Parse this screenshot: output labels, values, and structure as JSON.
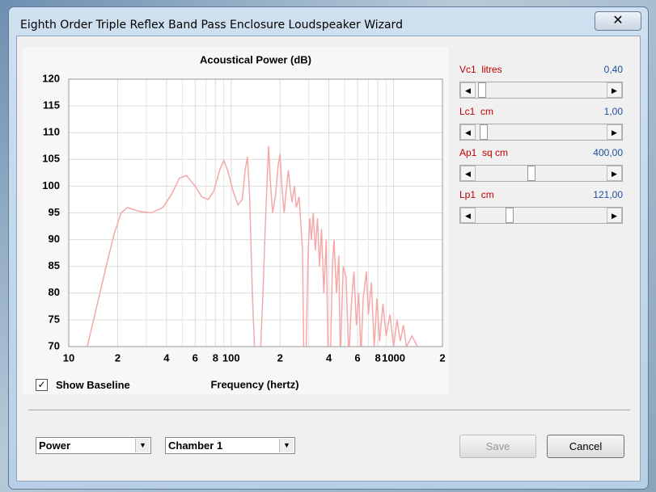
{
  "window": {
    "title": "Eighth Order Triple Reflex Band Pass Enclosure Loudspeaker Wizard"
  },
  "chart_data": {
    "type": "line",
    "title": "Acoustical Power (dB)",
    "x_label": "Frequency (hertz)",
    "color": "#f4a9a8",
    "grid": true,
    "xscale": "log",
    "xlim": [
      10,
      2000
    ],
    "ylim": [
      70,
      120
    ],
    "xticks": [
      10,
      {
        "value": 20,
        "label": "2"
      },
      {
        "value": 40,
        "label": "4"
      },
      {
        "value": 60,
        "label": "6"
      },
      {
        "value": 80,
        "label": "8"
      },
      100,
      {
        "value": 200,
        "label": "2"
      },
      {
        "value": 400,
        "label": "4"
      },
      {
        "value": 600,
        "label": "6"
      },
      {
        "value": 800,
        "label": "8"
      },
      1000,
      {
        "value": 2000,
        "label": "2"
      }
    ],
    "x_minor_grid": [
      30,
      50,
      70,
      90,
      300,
      500,
      700,
      900
    ],
    "yticks": [
      70,
      75,
      80,
      85,
      90,
      95,
      100,
      105,
      110,
      115,
      120
    ],
    "x": [
      13,
      15,
      17,
      19,
      21,
      23,
      27,
      32,
      38,
      43,
      48,
      53,
      60,
      66,
      72,
      78,
      85,
      90,
      95,
      103,
      110,
      117,
      122,
      126,
      130,
      135,
      140,
      152,
      157,
      162,
      166,
      170,
      175,
      180,
      187,
      195,
      200,
      205,
      212,
      218,
      225,
      230,
      237,
      245,
      252,
      262,
      275,
      280,
      290,
      298,
      305,
      312,
      320,
      330,
      340,
      350,
      360,
      372,
      385,
      395,
      410,
      420,
      430,
      445,
      460,
      470,
      490,
      510,
      530,
      550,
      570,
      590,
      610,
      630,
      650,
      680,
      700,
      730,
      760,
      790,
      820,
      860,
      900,
      950,
      1000,
      1050,
      1100,
      1150,
      1200,
      1300,
      1400
    ],
    "values": [
      70,
      78,
      85,
      91,
      95,
      96,
      95.3,
      95,
      96,
      98.5,
      101.5,
      102,
      100,
      98,
      97.5,
      99,
      103,
      104.8,
      103,
      99,
      96.5,
      97.5,
      103,
      105.5,
      98,
      80,
      68,
      70,
      80,
      92,
      100,
      107.5,
      100,
      95,
      98,
      104,
      106,
      100,
      95,
      99,
      103,
      100,
      97,
      100,
      96,
      98,
      88,
      68,
      70,
      88,
      94,
      90,
      95,
      88,
      94,
      85,
      92,
      80,
      90,
      68,
      70,
      85,
      90,
      80,
      87,
      68,
      85,
      83,
      68,
      78,
      84,
      74,
      80,
      68,
      79,
      84,
      76,
      82,
      70,
      79,
      71,
      78,
      72,
      76,
      70,
      75,
      71,
      74,
      70,
      72,
      70
    ]
  },
  "parameters": [
    {
      "label": "Vc1  litres",
      "value": "0,40"
    },
    {
      "label": "Lc1  cm",
      "value": "1,00"
    },
    {
      "label": "Ap1  sq cm",
      "value": "400,00"
    },
    {
      "label": "Lp1  cm",
      "value": "121,00"
    }
  ],
  "show_baseline": {
    "label": "Show Baseline",
    "checked": true
  },
  "dropdowns": [
    "Power",
    "Chamber 1"
  ],
  "buttons": [
    "Save",
    "Cancel"
  ]
}
